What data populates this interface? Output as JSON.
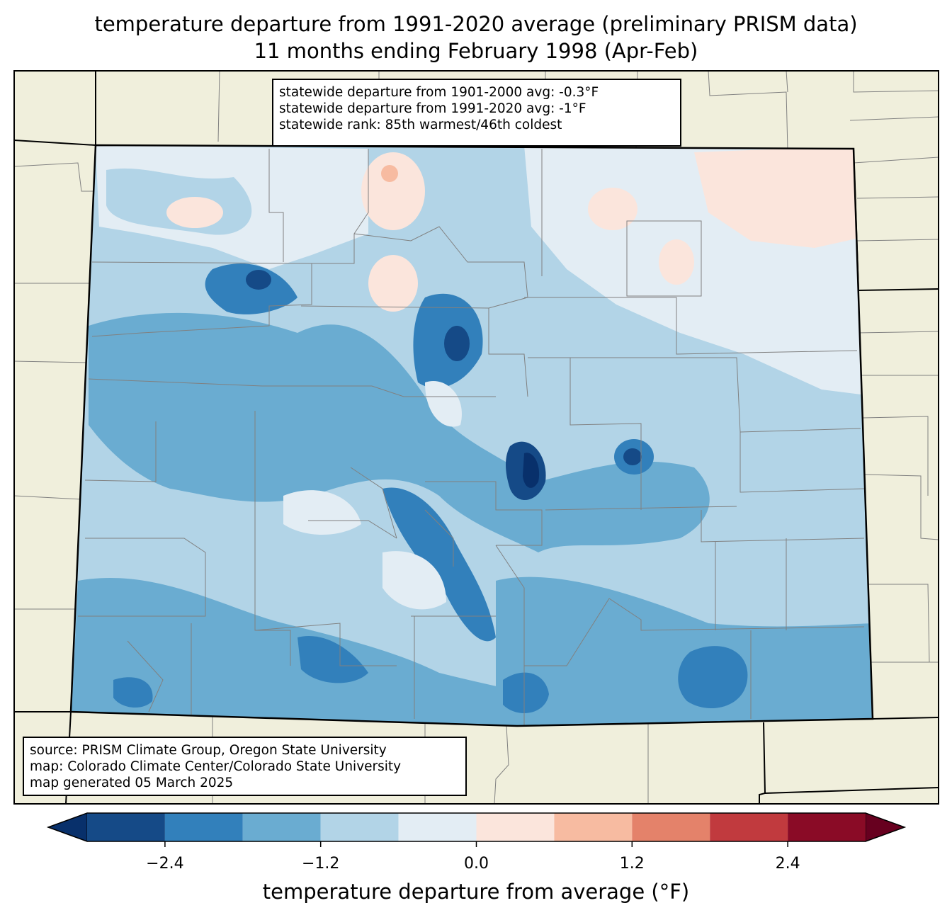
{
  "title": {
    "line1": "temperature departure from 1991-2020 average (preliminary PRISM data)",
    "line2": "11 months ending February 1998 (Apr-Feb)"
  },
  "stats": {
    "line1": "statewide departure from 1901-2000 avg: -0.3°F",
    "line2": "statewide departure from 1991-2020 avg: -1°F",
    "line3": "statewide rank: 85th warmest/46th coldest"
  },
  "source": {
    "line1": "source: PRISM Climate Group, Oregon State University",
    "line2": "map: Colorado Climate Center/Colorado State University",
    "line3": "map generated 05 March 2025"
  },
  "colorbar": {
    "label": "temperature departure from average (°F)",
    "ticks": [
      "−2.4",
      "−1.2",
      "0.0",
      "1.2",
      "2.4"
    ],
    "tick_values": [
      -2.4,
      -1.2,
      0.0,
      1.2,
      2.4
    ],
    "min": -3.0,
    "max": 3.0,
    "bins": [
      {
        "from": -3.0,
        "to": -2.4,
        "color": "#154a87"
      },
      {
        "from": -2.4,
        "to": -1.8,
        "color": "#3280bb"
      },
      {
        "from": -1.8,
        "to": -1.2,
        "color": "#6aacd1"
      },
      {
        "from": -1.2,
        "to": -0.6,
        "color": "#b2d4e7"
      },
      {
        "from": -0.6,
        "to": 0.0,
        "color": "#e3edf4"
      },
      {
        "from": 0.0,
        "to": 0.6,
        "color": "#fbe5dc"
      },
      {
        "from": 0.6,
        "to": 1.2,
        "color": "#f7bba1"
      },
      {
        "from": 1.2,
        "to": 1.8,
        "color": "#e4826a"
      },
      {
        "from": 1.8,
        "to": 2.4,
        "color": "#c13a3e"
      },
      {
        "from": 2.4,
        "to": 3.0,
        "color": "#8a0b26"
      }
    ],
    "under_color": "#08306b",
    "over_color": "#67001f"
  },
  "colors": {
    "land": "#f0efdc",
    "state_border": "#000000",
    "county_border": "#808080"
  }
}
